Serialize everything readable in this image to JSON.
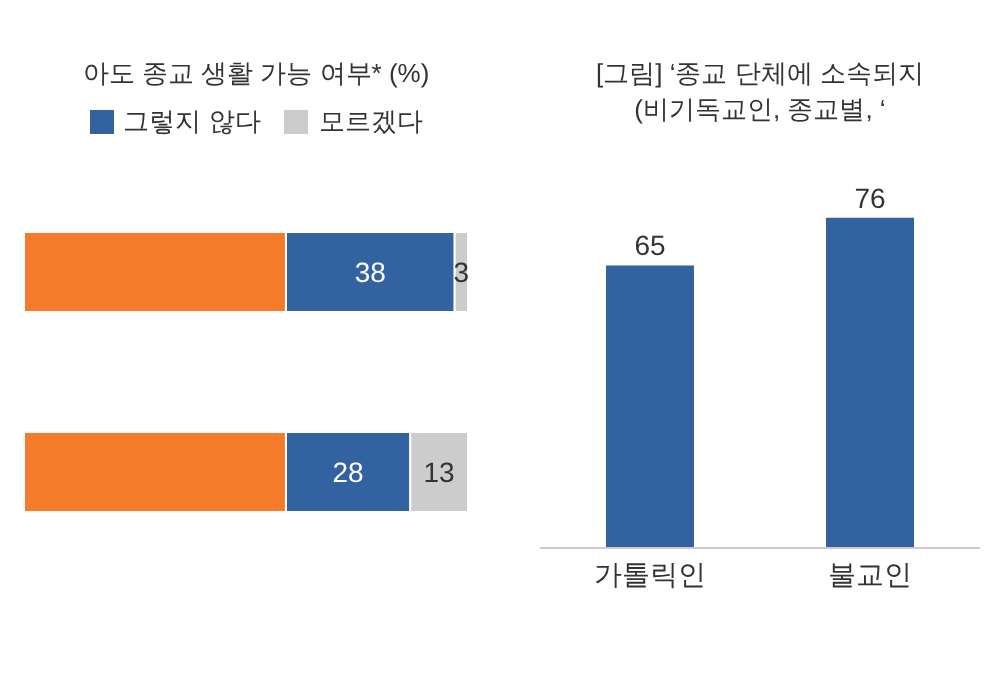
{
  "chart_data": [
    {
      "type": "bar",
      "orientation": "horizontal",
      "stacked": true,
      "title": "아도 종교 생활 가능 여부* (%)",
      "categories": [
        null,
        null
      ],
      "xlim": [
        0,
        100
      ],
      "tick_labels": false,
      "legend": "top",
      "grid": false,
      "series": [
        {
          "color": "#f47b2a",
          "values": [
            59,
            59
          ],
          "value_labels": [
            null,
            null
          ]
        },
        {
          "name": "그렇지 않다",
          "color": "#3263a0",
          "values": [
            38,
            28
          ],
          "value_labels": [
            "38",
            "28"
          ]
        },
        {
          "name": "모르겠다",
          "color": "#cccccc",
          "values": [
            3,
            13
          ],
          "value_labels": [
            "3",
            "13"
          ]
        }
      ]
    },
    {
      "type": "bar",
      "title": "[그림] ‘종교 단체에 소속되지",
      "subtitle": "(비기독교인, 종교별, ‘",
      "categories": [
        "가톨릭인",
        "불교인"
      ],
      "values": [
        65,
        76
      ],
      "color": "#3263a0",
      "data_labels": true,
      "grid": false
    }
  ]
}
